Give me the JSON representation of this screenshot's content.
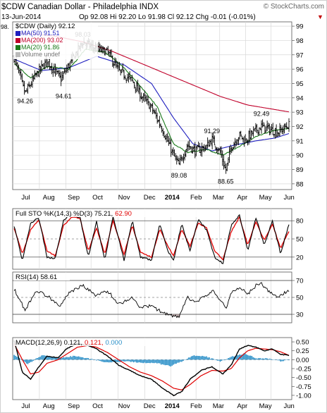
{
  "header": {
    "symbol_line": "$CDW Canadian Dollar - Philadelphia INDX",
    "watermark": "© StockCharts.com",
    "date": "13-Jun-2014",
    "quote": "Op 92.08  Hi 92.20  Lo 91.98  Cl 92.12  Chg -0.01 (-0.01%)",
    "chg_arrow": "▼"
  },
  "colors": {
    "price": "#000000",
    "ma50": "#1f1fbf",
    "ma200": "#c0002a",
    "ma20": "#1a7a1a",
    "sto_k": "#000000",
    "sto_d": "#e00000",
    "macd_line": "#000000",
    "macd_signal": "#e00000",
    "macd_hist": "#2a8fc8",
    "grid": "#d8d8d8",
    "ref_line": "#555555"
  },
  "chart_data": [
    {
      "type": "ohlc",
      "panel": "price",
      "title": "$CDW (Daily) 92.12",
      "legend": [
        {
          "name": "MA(50) 91.51",
          "color": "#1f1fbf"
        },
        {
          "name": "MA(200) 93.02",
          "color": "#c0002a"
        },
        {
          "name": "MA(20) 91.86",
          "color": "#1a7a1a"
        },
        {
          "name": "Volume undef",
          "color": "#999999"
        }
      ],
      "y_ticks": [
        88,
        89,
        90,
        91,
        92,
        93,
        94,
        95,
        96,
        97,
        98,
        99
      ],
      "ylim": [
        87.6,
        99.3
      ],
      "left_label": "98.",
      "annotations": [
        {
          "text": "98.03",
          "x": 0.25,
          "y": 98.03
        },
        {
          "text": "94.26",
          "x": 0.04,
          "y": 94.26
        },
        {
          "text": "94.61",
          "x": 0.18,
          "y": 94.61
        },
        {
          "text": "89.08",
          "x": 0.6,
          "y": 89.08
        },
        {
          "text": "91.29",
          "x": 0.72,
          "y": 91.29
        },
        {
          "text": "88.65",
          "x": 0.77,
          "y": 88.65
        },
        {
          "text": "92.49",
          "x": 0.9,
          "y": 92.49
        }
      ],
      "close_anchors": [
        [
          0.0,
          96.8
        ],
        [
          0.04,
          94.3
        ],
        [
          0.08,
          95.6
        ],
        [
          0.12,
          96.6
        ],
        [
          0.17,
          95.3
        ],
        [
          0.2,
          96.3
        ],
        [
          0.25,
          97.9
        ],
        [
          0.3,
          97.4
        ],
        [
          0.34,
          97.2
        ],
        [
          0.38,
          95.9
        ],
        [
          0.43,
          95.2
        ],
        [
          0.46,
          94.2
        ],
        [
          0.5,
          93.3
        ],
        [
          0.54,
          91.8
        ],
        [
          0.58,
          90.0
        ],
        [
          0.6,
          89.3
        ],
        [
          0.63,
          90.7
        ],
        [
          0.66,
          90.3
        ],
        [
          0.7,
          90.6
        ],
        [
          0.72,
          91.1
        ],
        [
          0.75,
          90.2
        ],
        [
          0.77,
          88.9
        ],
        [
          0.79,
          90.6
        ],
        [
          0.82,
          91.4
        ],
        [
          0.84,
          91.0
        ],
        [
          0.87,
          91.6
        ],
        [
          0.9,
          92.0
        ],
        [
          0.93,
          91.8
        ],
        [
          0.96,
          91.6
        ],
        [
          1.0,
          92.12
        ]
      ],
      "ma50": [
        [
          0.0,
          96.7
        ],
        [
          0.1,
          95.9
        ],
        [
          0.2,
          96.1
        ],
        [
          0.3,
          96.9
        ],
        [
          0.4,
          96.3
        ],
        [
          0.5,
          95.0
        ],
        [
          0.58,
          92.6
        ],
        [
          0.65,
          90.8
        ],
        [
          0.72,
          90.3
        ],
        [
          0.8,
          90.7
        ],
        [
          0.88,
          91.0
        ],
        [
          0.95,
          91.2
        ],
        [
          1.0,
          91.51
        ]
      ],
      "ma200": [
        [
          0.04,
          98.5
        ],
        [
          0.15,
          98.3
        ],
        [
          0.25,
          97.9
        ],
        [
          0.35,
          97.3
        ],
        [
          0.45,
          96.5
        ],
        [
          0.55,
          95.7
        ],
        [
          0.65,
          94.9
        ],
        [
          0.75,
          94.1
        ],
        [
          0.85,
          93.5
        ],
        [
          1.0,
          93.02
        ]
      ],
      "ma20": [
        [
          0.0,
          96.4
        ],
        [
          0.06,
          95.4
        ],
        [
          0.12,
          96.2
        ],
        [
          0.2,
          96.0
        ],
        [
          0.26,
          97.4
        ],
        [
          0.33,
          97.2
        ],
        [
          0.4,
          96.1
        ],
        [
          0.46,
          94.8
        ],
        [
          0.52,
          93.4
        ],
        [
          0.58,
          90.8
        ],
        [
          0.63,
          90.2
        ],
        [
          0.7,
          90.4
        ],
        [
          0.76,
          90.0
        ],
        [
          0.82,
          90.6
        ],
        [
          0.88,
          91.3
        ],
        [
          0.94,
          91.7
        ],
        [
          1.0,
          91.86
        ]
      ]
    },
    {
      "type": "line",
      "panel": "sto",
      "title": "Full STO %K(14,3) %D(3) 75.21, 62.90",
      "title_k": "Full STO %K(14,3) %D(3) 75.21,",
      "title_d": "62.90",
      "y_ticks": [
        20,
        50,
        80
      ],
      "ylim": [
        0,
        100
      ],
      "k_anchors": [
        [
          0.0,
          72
        ],
        [
          0.03,
          15
        ],
        [
          0.06,
          75
        ],
        [
          0.09,
          85
        ],
        [
          0.12,
          20
        ],
        [
          0.15,
          18
        ],
        [
          0.18,
          82
        ],
        [
          0.21,
          90
        ],
        [
          0.24,
          85
        ],
        [
          0.27,
          20
        ],
        [
          0.3,
          78
        ],
        [
          0.33,
          15
        ],
        [
          0.36,
          88
        ],
        [
          0.4,
          15
        ],
        [
          0.43,
          80
        ],
        [
          0.46,
          20
        ],
        [
          0.5,
          15
        ],
        [
          0.53,
          75
        ],
        [
          0.56,
          30
        ],
        [
          0.58,
          15
        ],
        [
          0.61,
          75
        ],
        [
          0.64,
          30
        ],
        [
          0.67,
          82
        ],
        [
          0.7,
          65
        ],
        [
          0.73,
          20
        ],
        [
          0.76,
          10
        ],
        [
          0.79,
          72
        ],
        [
          0.82,
          90
        ],
        [
          0.85,
          30
        ],
        [
          0.88,
          85
        ],
        [
          0.91,
          40
        ],
        [
          0.94,
          80
        ],
        [
          0.97,
          25
        ],
        [
          1.0,
          75
        ]
      ],
      "d_anchors": [
        [
          0.0,
          68
        ],
        [
          0.03,
          25
        ],
        [
          0.06,
          65
        ],
        [
          0.09,
          82
        ],
        [
          0.12,
          30
        ],
        [
          0.15,
          22
        ],
        [
          0.18,
          72
        ],
        [
          0.21,
          86
        ],
        [
          0.24,
          84
        ],
        [
          0.27,
          30
        ],
        [
          0.3,
          68
        ],
        [
          0.33,
          25
        ],
        [
          0.36,
          80
        ],
        [
          0.4,
          25
        ],
        [
          0.43,
          72
        ],
        [
          0.46,
          28
        ],
        [
          0.5,
          20
        ],
        [
          0.53,
          66
        ],
        [
          0.56,
          38
        ],
        [
          0.58,
          22
        ],
        [
          0.61,
          66
        ],
        [
          0.64,
          38
        ],
        [
          0.67,
          76
        ],
        [
          0.7,
          68
        ],
        [
          0.73,
          30
        ],
        [
          0.76,
          16
        ],
        [
          0.79,
          62
        ],
        [
          0.82,
          86
        ],
        [
          0.85,
          40
        ],
        [
          0.88,
          78
        ],
        [
          0.91,
          48
        ],
        [
          0.94,
          74
        ],
        [
          0.97,
          35
        ],
        [
          1.0,
          62.9
        ]
      ]
    },
    {
      "type": "line",
      "panel": "rsi",
      "title": "RSI(14) 58.61",
      "y_ticks": [
        30,
        50,
        70
      ],
      "ylim": [
        20,
        80
      ],
      "ref_lines": [
        30,
        70
      ],
      "anchors": [
        [
          0.0,
          60
        ],
        [
          0.04,
          35
        ],
        [
          0.08,
          58
        ],
        [
          0.12,
          52
        ],
        [
          0.17,
          40
        ],
        [
          0.2,
          56
        ],
        [
          0.25,
          64
        ],
        [
          0.3,
          52
        ],
        [
          0.34,
          58
        ],
        [
          0.38,
          42
        ],
        [
          0.43,
          50
        ],
        [
          0.46,
          38
        ],
        [
          0.5,
          40
        ],
        [
          0.54,
          32
        ],
        [
          0.58,
          28
        ],
        [
          0.6,
          26
        ],
        [
          0.63,
          50
        ],
        [
          0.66,
          44
        ],
        [
          0.7,
          52
        ],
        [
          0.72,
          58
        ],
        [
          0.75,
          48
        ],
        [
          0.77,
          36
        ],
        [
          0.79,
          56
        ],
        [
          0.82,
          62
        ],
        [
          0.85,
          54
        ],
        [
          0.88,
          64
        ],
        [
          0.9,
          66
        ],
        [
          0.93,
          56
        ],
        [
          0.96,
          50
        ],
        [
          1.0,
          58.61
        ]
      ]
    },
    {
      "type": "line",
      "panel": "macd",
      "title": "MACD(12,26,9) 0.121, 0.121, 0.000",
      "title_macd": "MACD(12,26,9) 0.121,",
      "title_signal": "0.121,",
      "title_hist": "0.000",
      "y_ticks": [
        -1.0,
        -0.75,
        -0.5,
        -0.25,
        0.0,
        0.25,
        0.5
      ],
      "y_tick_labels": [
        "-1.00",
        "-0.75",
        "-0.50",
        "-0.25",
        "0.00",
        "0.25",
        "0.50"
      ],
      "ylim": [
        -1.12,
        0.62
      ],
      "macd_anchors": [
        [
          0.0,
          0.55
        ],
        [
          0.03,
          -0.35
        ],
        [
          0.06,
          -0.55
        ],
        [
          0.09,
          -0.2
        ],
        [
          0.12,
          0.1
        ],
        [
          0.16,
          0.05
        ],
        [
          0.19,
          0.3
        ],
        [
          0.23,
          0.45
        ],
        [
          0.27,
          0.4
        ],
        [
          0.3,
          0.3
        ],
        [
          0.34,
          0.1
        ],
        [
          0.38,
          -0.15
        ],
        [
          0.42,
          -0.3
        ],
        [
          0.46,
          -0.45
        ],
        [
          0.5,
          -0.55
        ],
        [
          0.54,
          -0.8
        ],
        [
          0.58,
          -1.0
        ],
        [
          0.61,
          -0.9
        ],
        [
          0.64,
          -0.55
        ],
        [
          0.68,
          -0.3
        ],
        [
          0.72,
          -0.2
        ],
        [
          0.76,
          -0.4
        ],
        [
          0.79,
          -0.15
        ],
        [
          0.82,
          0.3
        ],
        [
          0.85,
          0.4
        ],
        [
          0.88,
          0.35
        ],
        [
          0.91,
          0.25
        ],
        [
          0.94,
          0.3
        ],
        [
          0.97,
          0.15
        ],
        [
          1.0,
          0.121
        ]
      ],
      "signal_anchors": [
        [
          0.0,
          0.45
        ],
        [
          0.03,
          0.0
        ],
        [
          0.06,
          -0.4
        ],
        [
          0.09,
          -0.35
        ],
        [
          0.12,
          -0.1
        ],
        [
          0.16,
          0.0
        ],
        [
          0.19,
          0.15
        ],
        [
          0.23,
          0.35
        ],
        [
          0.27,
          0.4
        ],
        [
          0.3,
          0.35
        ],
        [
          0.34,
          0.2
        ],
        [
          0.38,
          0.0
        ],
        [
          0.42,
          -0.2
        ],
        [
          0.46,
          -0.35
        ],
        [
          0.5,
          -0.45
        ],
        [
          0.54,
          -0.6
        ],
        [
          0.58,
          -0.8
        ],
        [
          0.61,
          -0.85
        ],
        [
          0.64,
          -0.7
        ],
        [
          0.68,
          -0.45
        ],
        [
          0.72,
          -0.3
        ],
        [
          0.76,
          -0.32
        ],
        [
          0.79,
          -0.25
        ],
        [
          0.82,
          0.05
        ],
        [
          0.85,
          0.25
        ],
        [
          0.88,
          0.32
        ],
        [
          0.91,
          0.3
        ],
        [
          0.94,
          0.28
        ],
        [
          0.97,
          0.22
        ],
        [
          1.0,
          0.121
        ]
      ],
      "hist_anchors": [
        [
          0.0,
          0.15
        ],
        [
          0.05,
          -0.12
        ],
        [
          0.1,
          0.12
        ],
        [
          0.16,
          0.05
        ],
        [
          0.22,
          0.1
        ],
        [
          0.28,
          0.02
        ],
        [
          0.34,
          -0.08
        ],
        [
          0.4,
          -0.05
        ],
        [
          0.46,
          -0.08
        ],
        [
          0.52,
          -0.1
        ],
        [
          0.57,
          -0.18
        ],
        [
          0.61,
          -0.05
        ],
        [
          0.65,
          0.12
        ],
        [
          0.7,
          0.08
        ],
        [
          0.75,
          -0.05
        ],
        [
          0.8,
          0.1
        ],
        [
          0.84,
          0.18
        ],
        [
          0.88,
          0.04
        ],
        [
          0.93,
          0.03
        ],
        [
          0.97,
          -0.04
        ],
        [
          1.0,
          0.0
        ]
      ]
    }
  ],
  "x_axis": {
    "labels": [
      {
        "text": "Jul",
        "x": 0.045,
        "bold": false
      },
      {
        "text": "Aug",
        "x": 0.135,
        "bold": false
      },
      {
        "text": "Sep",
        "x": 0.232,
        "bold": false
      },
      {
        "text": "Oct",
        "x": 0.325,
        "bold": false
      },
      {
        "text": "Nov",
        "x": 0.428,
        "bold": false
      },
      {
        "text": "Dec",
        "x": 0.527,
        "bold": false
      },
      {
        "text": "2014",
        "x": 0.615,
        "bold": true
      },
      {
        "text": "Feb",
        "x": 0.708,
        "bold": false
      },
      {
        "text": "Mar",
        "x": 0.795,
        "bold": false
      },
      {
        "text": "Apr",
        "x": 0.888,
        "bold": false
      },
      {
        "text": "May",
        "x": 0.978,
        "bold": false
      },
      {
        "text": "Jun",
        "x": 1.07,
        "bold": false
      }
    ],
    "month_lines": [
      0.0,
      0.092,
      0.188,
      0.28,
      0.378,
      0.476,
      0.57,
      0.662,
      0.748,
      0.842,
      0.935,
      1.025
    ]
  }
}
